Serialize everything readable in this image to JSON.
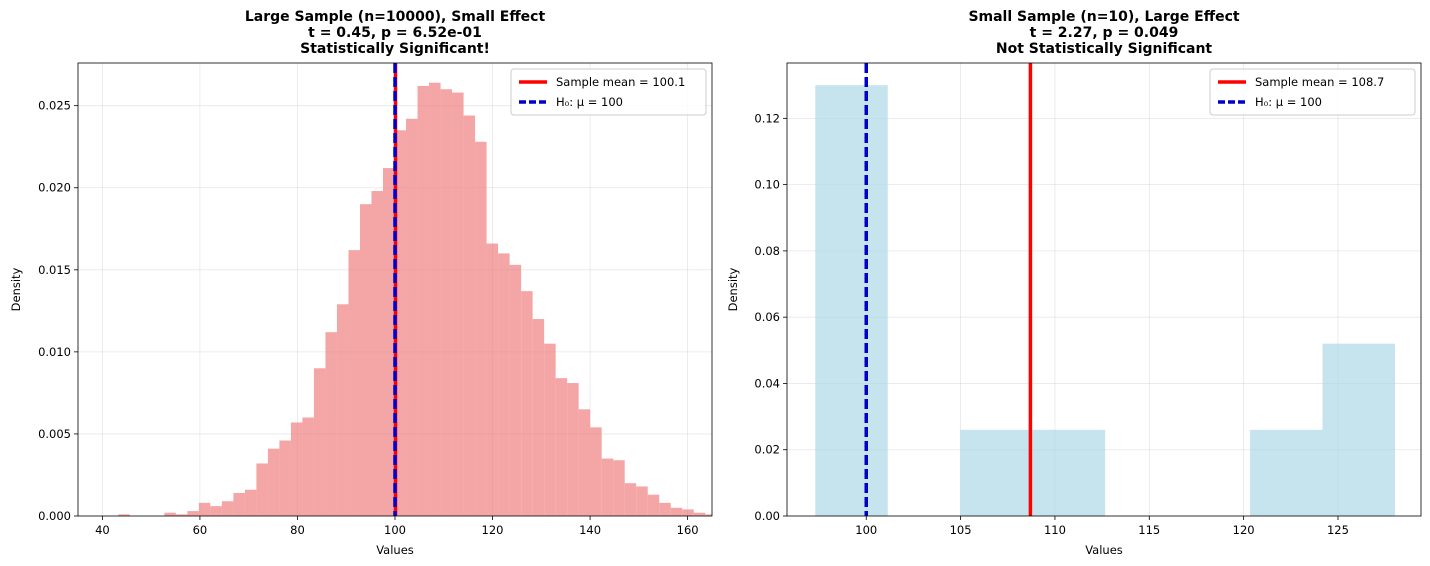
{
  "chart_data": [
    {
      "type": "bar",
      "title_lines": [
        "Large Sample (n=10000), Small Effect",
        "t = 0.45, p = 6.52e-01",
        "Statistically Significant!"
      ],
      "xlabel": "Values",
      "ylabel": "Density",
      "xlim": [
        35,
        165
      ],
      "ylim": [
        0,
        0.0276
      ],
      "xticks": [
        40,
        60,
        80,
        100,
        120,
        140,
        160
      ],
      "yticks": [
        0.0,
        0.005,
        0.01,
        0.015,
        0.02,
        0.025
      ],
      "ytick_labels": [
        "0.000",
        "0.005",
        "0.010",
        "0.015",
        "0.020",
        "0.025"
      ],
      "grid": true,
      "bar_color": "#f08080",
      "bar_alpha": 0.7,
      "bin_start": 40.9,
      "bin_width": 2.36,
      "densities": [
        0.0,
        0.0001,
        0.0,
        0.0,
        0.0,
        0.0002,
        0.0001,
        0.0003,
        0.0008,
        0.0006,
        0.0009,
        0.0014,
        0.0016,
        0.0032,
        0.0041,
        0.0046,
        0.0057,
        0.006,
        0.009,
        0.0112,
        0.0129,
        0.0162,
        0.019,
        0.0198,
        0.0212,
        0.0235,
        0.0242,
        0.0262,
        0.0264,
        0.026,
        0.0258,
        0.0244,
        0.0228,
        0.0166,
        0.016,
        0.0153,
        0.0137,
        0.012,
        0.0105,
        0.0084,
        0.0081,
        0.0065,
        0.0054,
        0.0035,
        0.0034,
        0.002,
        0.0018,
        0.0013,
        0.0008,
        0.0005,
        0.0004,
        0.0002,
        0.0001,
        0.0,
        0.0001
      ],
      "lines": [
        {
          "name": "Sample mean = 100.1",
          "x": 100.1,
          "color": "#ff0000",
          "style": "solid"
        },
        {
          "name": "H₀: μ = 100",
          "x": 100,
          "color": "#0000cc",
          "style": "dashed"
        }
      ],
      "legend_position": "upper right"
    },
    {
      "type": "bar",
      "title_lines": [
        "Small Sample (n=10), Large Effect",
        "t = 2.27, p = 0.049",
        "Not Statistically Significant"
      ],
      "xlabel": "Values",
      "ylabel": "Density",
      "xlim": [
        95.8,
        129.4
      ],
      "ylim": [
        0,
        0.1367
      ],
      "xticks": [
        100,
        105,
        110,
        115,
        120,
        125
      ],
      "yticks": [
        0.0,
        0.02,
        0.04,
        0.06,
        0.08,
        0.1,
        0.12
      ],
      "ytick_labels": [
        "0.00",
        "0.02",
        "0.04",
        "0.06",
        "0.08",
        "0.10",
        "0.12"
      ],
      "grid": true,
      "bar_color": "#add8e6",
      "bar_alpha": 0.7,
      "bin_start": 97.3,
      "bin_width": 3.84,
      "densities": [
        0.13,
        0.0,
        0.026,
        0.026,
        0.0,
        0.0,
        0.026,
        0.052
      ],
      "lines": [
        {
          "name": "Sample mean = 108.7",
          "x": 108.7,
          "color": "#ff0000",
          "style": "solid"
        },
        {
          "name": "H₀: μ = 100",
          "x": 100,
          "color": "#0000cc",
          "style": "dashed"
        }
      ],
      "legend_position": "upper right"
    }
  ]
}
